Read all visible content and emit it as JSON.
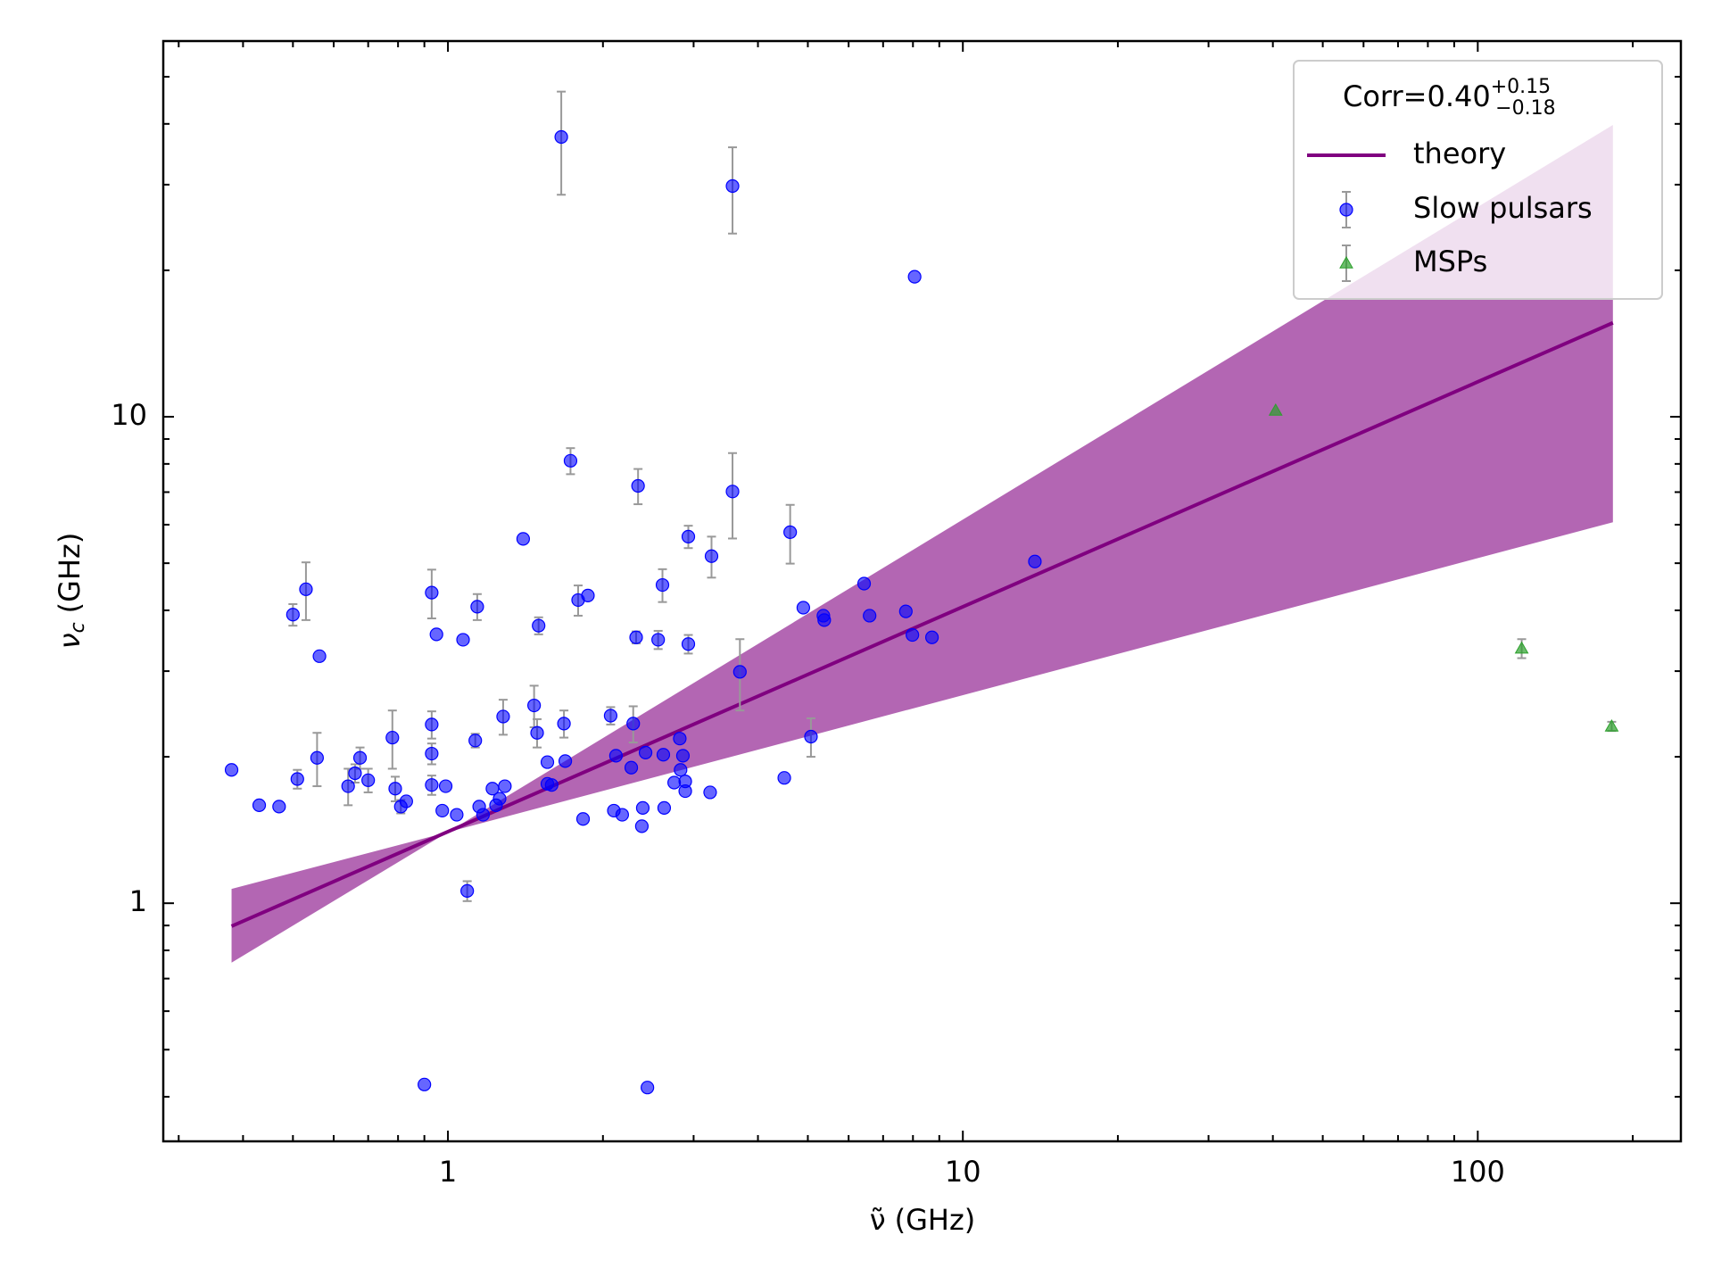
{
  "chart_data": {
    "type": "scatter",
    "xlabel": {
      "symbol": "ν̃",
      "unit": "(GHz)"
    },
    "ylabel": {
      "symbol": "ν",
      "sub": "c",
      "unit": "(GHz)"
    },
    "xscale": "log",
    "yscale": "log",
    "xlim": [
      0.28,
      248
    ],
    "ylim": [
      0.324,
      59.2
    ],
    "xticks": [
      1,
      10,
      100
    ],
    "yticks": [
      1,
      10
    ],
    "xticks_minor": [
      0.3,
      0.4,
      0.5,
      0.6,
      0.7,
      0.8,
      0.9,
      2,
      3,
      4,
      5,
      6,
      7,
      8,
      9,
      20,
      30,
      40,
      50,
      60,
      70,
      80,
      90,
      200
    ],
    "yticks_minor": [
      0.4,
      0.5,
      0.6,
      0.7,
      0.8,
      0.9,
      2,
      3,
      4,
      5,
      6,
      7,
      8,
      9,
      20,
      30,
      40,
      50
    ],
    "legend": "upper right",
    "legend_title": {
      "text": "Corr=0.40",
      "sup": "+0.15",
      "sub": "−0.18"
    },
    "band": {
      "color": "#800080",
      "x": [
        0.38,
        1.0,
        183
      ],
      "lower": [
        0.755,
        1.4,
        6.07
      ],
      "upper": [
        1.07,
        1.4,
        39.8
      ]
    },
    "series": [
      {
        "name": "theory",
        "kind": "line",
        "color": "#800080",
        "x": [
          0.38,
          183
        ],
        "values": [
          0.897,
          15.6
        ]
      },
      {
        "name": "Slow pulsars",
        "kind": "scatter",
        "marker": "circle",
        "color": "#0000ff",
        "x": [
          0.38,
          0.43,
          0.47,
          0.5,
          0.51,
          0.53,
          0.557,
          0.563,
          0.64,
          0.66,
          0.675,
          0.7,
          0.78,
          0.79,
          0.81,
          0.83,
          0.9,
          0.93,
          0.93,
          0.93,
          0.93,
          0.95,
          0.975,
          0.99,
          1.04,
          1.07,
          1.09,
          1.13,
          1.14,
          1.15,
          1.17,
          1.22,
          1.24,
          1.26,
          1.28,
          1.29,
          1.4,
          1.47,
          1.49,
          1.5,
          1.56,
          1.56,
          1.59,
          1.68,
          1.69,
          1.66,
          1.73,
          1.79,
          1.83,
          1.87,
          2.07,
          2.1,
          2.12,
          2.18,
          2.27,
          2.29,
          2.32,
          2.34,
          2.38,
          2.39,
          2.42,
          2.44,
          2.56,
          2.61,
          2.62,
          2.63,
          2.75,
          2.82,
          2.83,
          2.86,
          2.89,
          2.89,
          2.93,
          2.93,
          3.23,
          3.25,
          3.57,
          3.57,
          3.69,
          4.5,
          4.62,
          4.9,
          5.07,
          5.36,
          5.38,
          6.43,
          6.59,
          7.75,
          7.98,
          8.06,
          8.71,
          13.8
        ],
        "values": [
          1.88,
          1.59,
          1.58,
          3.92,
          1.8,
          4.42,
          1.99,
          3.22,
          1.74,
          1.85,
          1.99,
          1.79,
          2.19,
          1.72,
          1.58,
          1.62,
          0.424,
          4.35,
          2.33,
          2.03,
          1.75,
          3.57,
          1.55,
          1.74,
          1.52,
          3.48,
          1.06,
          2.16,
          4.07,
          1.58,
          1.52,
          1.72,
          1.59,
          1.64,
          2.42,
          1.74,
          5.61,
          2.55,
          2.24,
          3.72,
          1.95,
          1.76,
          1.75,
          2.34,
          1.96,
          37.6,
          8.12,
          4.2,
          1.49,
          4.29,
          2.43,
          1.55,
          2.01,
          1.52,
          1.9,
          2.34,
          3.52,
          7.21,
          1.44,
          1.57,
          2.04,
          0.418,
          3.48,
          4.51,
          2.02,
          1.57,
          1.77,
          2.18,
          1.88,
          2.01,
          1.78,
          1.7,
          5.67,
          3.41,
          1.69,
          5.17,
          29.8,
          7.02,
          2.99,
          1.81,
          5.79,
          4.05,
          2.2,
          3.9,
          3.82,
          4.54,
          3.9,
          3.98,
          3.56,
          19.4,
          3.52,
          5.04
        ],
        "errors": [
          null,
          null,
          null,
          0.2,
          0.08,
          0.6,
          0.25,
          null,
          0.15,
          0.08,
          0.1,
          0.1,
          0.3,
          0.1,
          0.05,
          null,
          null,
          0.5,
          0.15,
          0.1,
          0.08,
          null,
          null,
          null,
          null,
          null,
          0.05,
          0.07,
          0.25,
          null,
          null,
          null,
          null,
          null,
          0.2,
          null,
          null,
          0.25,
          0.15,
          0.15,
          null,
          null,
          null,
          0.15,
          null,
          9,
          0.5,
          0.3,
          null,
          null,
          0.1,
          null,
          null,
          null,
          null,
          0.2,
          0.1,
          0.6,
          null,
          null,
          null,
          null,
          0.15,
          0.35,
          null,
          null,
          null,
          null,
          null,
          null,
          null,
          null,
          0.3,
          0.15,
          null,
          0.5,
          6,
          1.4,
          0.5,
          null,
          0.8,
          null,
          0.2,
          null,
          null,
          null,
          null,
          null,
          null,
          null,
          null,
          null
        ]
      },
      {
        "name": "MSPs",
        "kind": "scatter",
        "marker": "triangle",
        "color": "#2ca02c",
        "x": [
          40.5,
          121.7,
          182
        ],
        "values": [
          10.3,
          3.34,
          2.31
        ],
        "errors": [
          null,
          0.15,
          0.05
        ]
      }
    ]
  }
}
